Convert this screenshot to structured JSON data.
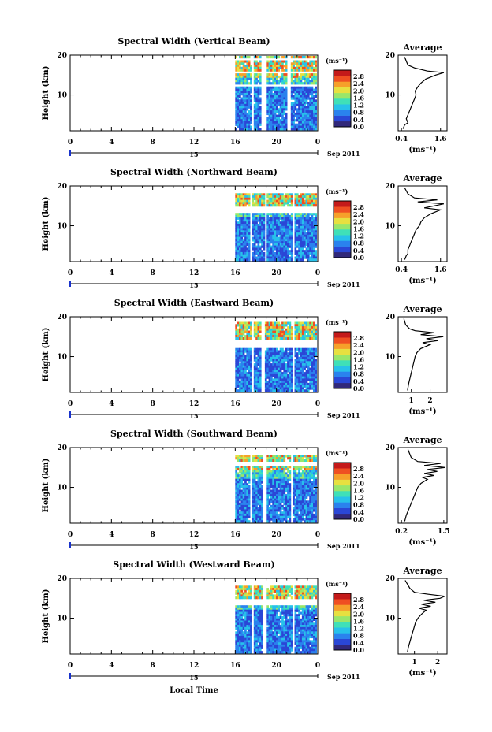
{
  "xlabel": "Local Time",
  "date_label": "Sep 2011",
  "x_ticks": [
    "0",
    "4",
    "8",
    "12",
    "16",
    "20",
    "0"
  ],
  "day_label": "15",
  "y_ticks": [
    "20",
    "10"
  ],
  "colorbar_unit": "(ms⁻¹)",
  "colorbar_ticks": [
    "2.8",
    "2.4",
    "2.0",
    "1.6",
    "1.2",
    "0.8",
    "0.4",
    "0.0"
  ],
  "average_title": "Average",
  "average_xlabel": "(ms⁻¹)",
  "colors": {
    "colormap": [
      "#31287a",
      "#2a47d6",
      "#2a82ee",
      "#27c1ea",
      "#3fe0b8",
      "#9ae66a",
      "#e8e040",
      "#f6a02a",
      "#ef4f22",
      "#c41a1a"
    ],
    "profile_line": "#000000"
  },
  "chart_data": [
    {
      "type": "heatmap",
      "title": "Spectral Width (Vertical Beam)",
      "ylabel": "Height (km)",
      "xlim": [
        0,
        24
      ],
      "ylim": [
        1,
        20
      ],
      "data_x_start": 16,
      "data_x_end": 23.9,
      "gaps_hours": [
        [
          17.55,
          17.75
        ],
        [
          18.6,
          19.1
        ],
        [
          21.1,
          21.3
        ]
      ],
      "blank_heights_km": [
        [
          18.5,
          19.0
        ],
        [
          15.3,
          15.8
        ],
        [
          12.3,
          12.9
        ]
      ],
      "color_scale": [
        0.0,
        2.8
      ],
      "profile": {
        "title": "Average",
        "x_ticks": [
          "0.4",
          "1.6"
        ],
        "xlim": [
          0.3,
          1.8
        ],
        "ylim": [
          1,
          20
        ],
        "points": [
          [
            0.45,
            1.5
          ],
          [
            0.5,
            2.5
          ],
          [
            0.6,
            3
          ],
          [
            0.55,
            4
          ],
          [
            0.6,
            5
          ],
          [
            0.65,
            6
          ],
          [
            0.7,
            7
          ],
          [
            0.75,
            8
          ],
          [
            0.8,
            9
          ],
          [
            0.85,
            10
          ],
          [
            0.82,
            11
          ],
          [
            0.9,
            12
          ],
          [
            1.0,
            13
          ],
          [
            1.15,
            14
          ],
          [
            1.45,
            15
          ],
          [
            1.7,
            15.6
          ],
          [
            1.2,
            16
          ],
          [
            0.8,
            16.8
          ],
          [
            0.6,
            17.5
          ],
          [
            0.55,
            18.5
          ],
          [
            0.5,
            19.5
          ]
        ]
      }
    },
    {
      "type": "heatmap",
      "title": "Spectral Width (Northward Beam)",
      "ylabel": "Height (km)",
      "xlim": [
        0,
        24
      ],
      "ylim": [
        1,
        20
      ],
      "data_x_start": 16,
      "data_x_end": 23.9,
      "gaps_hours": [
        [
          17.45,
          17.7
        ],
        [
          18.8,
          19.1
        ],
        [
          21.6,
          21.8
        ]
      ],
      "blank_heights_km": [
        [
          18.0,
          20.0
        ],
        [
          13.2,
          15.0
        ]
      ],
      "color_scale": [
        0.0,
        2.8
      ],
      "profile": {
        "title": "Average",
        "x_ticks": [
          "0.4",
          "1.6"
        ],
        "xlim": [
          0.3,
          1.8
        ],
        "ylim": [
          1,
          20
        ],
        "points": [
          [
            0.5,
            1.5
          ],
          [
            0.55,
            2.5
          ],
          [
            0.6,
            3
          ],
          [
            0.6,
            4
          ],
          [
            0.65,
            5
          ],
          [
            0.7,
            6
          ],
          [
            0.75,
            7
          ],
          [
            0.8,
            8
          ],
          [
            0.85,
            9
          ],
          [
            0.95,
            10
          ],
          [
            1.0,
            11
          ],
          [
            1.1,
            12
          ],
          [
            1.3,
            13
          ],
          [
            1.6,
            14
          ],
          [
            1.1,
            14.5
          ],
          [
            1.4,
            15
          ],
          [
            1.7,
            15.5
          ],
          [
            0.9,
            16
          ],
          [
            1.5,
            16.5
          ],
          [
            0.8,
            17
          ],
          [
            0.6,
            18
          ],
          [
            0.5,
            19.5
          ]
        ]
      }
    },
    {
      "type": "heatmap",
      "title": "Spectral Width (Eastward Beam)",
      "ylabel": "Height (km)",
      "xlim": [
        0,
        24
      ],
      "ylim": [
        1,
        20
      ],
      "data_x_start": 16,
      "data_x_end": 23.9,
      "gaps_hours": [
        [
          17.6,
          17.85
        ],
        [
          18.6,
          18.8
        ],
        [
          21.5,
          21.7
        ]
      ],
      "blank_heights_km": [
        [
          18.6,
          20.0
        ],
        [
          12.3,
          14.6
        ]
      ],
      "color_scale": [
        0.0,
        2.8
      ],
      "profile": {
        "title": "Average",
        "x_ticks": [
          "1",
          "2"
        ],
        "xlim": [
          0.3,
          2.9
        ],
        "ylim": [
          1,
          20
        ],
        "points": [
          [
            0.8,
            1.5
          ],
          [
            0.85,
            3
          ],
          [
            0.9,
            4
          ],
          [
            0.95,
            5
          ],
          [
            1.0,
            6
          ],
          [
            1.05,
            7
          ],
          [
            1.1,
            8
          ],
          [
            1.15,
            9
          ],
          [
            1.2,
            10
          ],
          [
            1.3,
            11
          ],
          [
            1.5,
            12
          ],
          [
            2.0,
            13
          ],
          [
            1.6,
            13.5
          ],
          [
            2.4,
            14
          ],
          [
            1.8,
            14.5
          ],
          [
            2.7,
            15
          ],
          [
            1.5,
            15.5
          ],
          [
            2.2,
            16
          ],
          [
            1.2,
            16.5
          ],
          [
            0.9,
            17
          ],
          [
            0.7,
            18
          ],
          [
            0.6,
            19.5
          ]
        ]
      }
    },
    {
      "type": "heatmap",
      "title": "Spectral Width (Southward Beam)",
      "ylabel": "Height (km)",
      "xlim": [
        0,
        24
      ],
      "ylim": [
        1,
        20
      ],
      "data_x_start": 16,
      "data_x_end": 23.9,
      "gaps_hours": [
        [
          17.5,
          17.7
        ],
        [
          18.7,
          19.0
        ],
        [
          21.4,
          21.6
        ]
      ],
      "blank_heights_km": [
        [
          17.9,
          20.0
        ],
        [
          15.6,
          16.4
        ]
      ],
      "color_scale": [
        0.0,
        2.8
      ],
      "profile": {
        "title": "Average",
        "x_ticks": [
          "0.2",
          "1.5"
        ],
        "xlim": [
          0.1,
          1.6
        ],
        "ylim": [
          1,
          20
        ],
        "points": [
          [
            0.3,
            1.5
          ],
          [
            0.35,
            3
          ],
          [
            0.4,
            4
          ],
          [
            0.45,
            5
          ],
          [
            0.5,
            6
          ],
          [
            0.55,
            7
          ],
          [
            0.6,
            8
          ],
          [
            0.65,
            9
          ],
          [
            0.7,
            10
          ],
          [
            0.8,
            11
          ],
          [
            1.0,
            12
          ],
          [
            0.85,
            12.5
          ],
          [
            1.2,
            13
          ],
          [
            0.9,
            13.5
          ],
          [
            1.3,
            14
          ],
          [
            1.0,
            14.5
          ],
          [
            1.55,
            15
          ],
          [
            0.9,
            15.5
          ],
          [
            1.4,
            16
          ],
          [
            0.7,
            16.5
          ],
          [
            0.5,
            17.5
          ],
          [
            0.4,
            19.5
          ]
        ]
      }
    },
    {
      "type": "heatmap",
      "title": "Spectral Width (Westward Beam)",
      "ylabel": "Height (km)",
      "xlim": [
        0,
        24
      ],
      "ylim": [
        1,
        20
      ],
      "data_x_start": 16,
      "data_x_end": 23.9,
      "gaps_hours": [
        [
          17.55,
          17.75
        ],
        [
          18.7,
          19.0
        ],
        [
          21.6,
          21.8
        ]
      ],
      "blank_heights_km": [
        [
          18.0,
          20.0
        ],
        [
          13.0,
          14.8
        ]
      ],
      "color_scale": [
        0.0,
        2.8
      ],
      "profile": {
        "title": "Average",
        "x_ticks": [
          "1",
          "2"
        ],
        "xlim": [
          0.3,
          2.4
        ],
        "ylim": [
          1,
          20
        ],
        "points": [
          [
            0.7,
            1.5
          ],
          [
            0.75,
            3
          ],
          [
            0.8,
            4
          ],
          [
            0.85,
            5
          ],
          [
            0.9,
            6
          ],
          [
            0.95,
            7
          ],
          [
            1.0,
            8
          ],
          [
            1.05,
            9
          ],
          [
            1.15,
            10
          ],
          [
            1.3,
            11
          ],
          [
            1.5,
            12
          ],
          [
            1.2,
            12.5
          ],
          [
            1.7,
            13
          ],
          [
            1.3,
            13.5
          ],
          [
            1.9,
            14
          ],
          [
            1.4,
            14.5
          ],
          [
            2.1,
            15
          ],
          [
            2.3,
            15.5
          ],
          [
            1.6,
            16
          ],
          [
            1.0,
            16.5
          ],
          [
            0.8,
            17.5
          ],
          [
            0.6,
            19.5
          ]
        ]
      }
    }
  ]
}
